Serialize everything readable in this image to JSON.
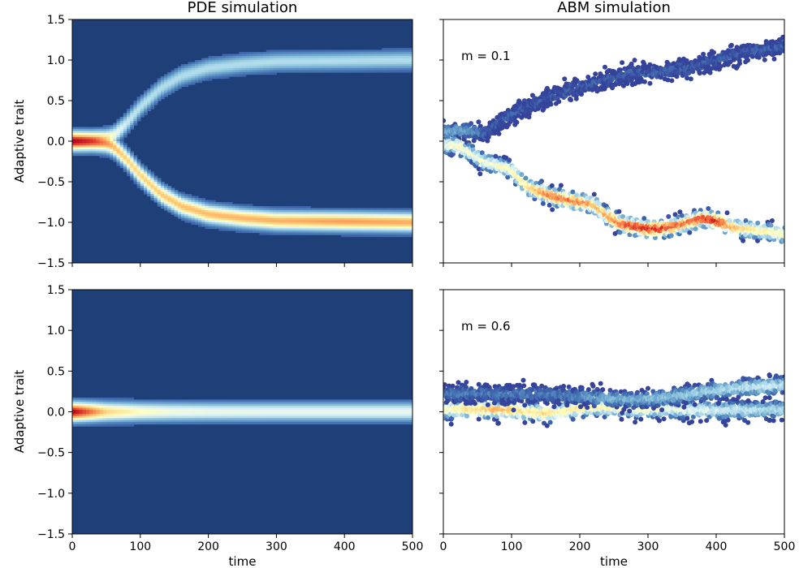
{
  "figure": {
    "colormap": [
      "#313695",
      "#4575b4",
      "#74add1",
      "#abd9e9",
      "#e0f3f8",
      "#ffffbf",
      "#fee090",
      "#fdae61",
      "#f46d43",
      "#d73027",
      "#a50026"
    ],
    "background_color": "#1f3f78"
  },
  "chart_data": [
    {
      "id": "pde-top",
      "type": "heatmap",
      "title": "PDE simulation",
      "xlabel": "",
      "ylabel": "Adaptive trait",
      "xlim": [
        0,
        500
      ],
      "ylim": [
        -1.5,
        1.5
      ],
      "xticks": [
        0,
        100,
        200,
        300,
        400,
        500
      ],
      "xtick_labels_shown": false,
      "yticks": [
        -1.5,
        -1.0,
        -0.5,
        0.0,
        0.5,
        1.0,
        1.5
      ],
      "ytick_labels": [
        "−1.5",
        "−1.0",
        "−0.5",
        "0.0",
        "0.5",
        "1.0",
        "1.5"
      ],
      "branches": [
        {
          "name": "",
          "t": [
            0,
            30,
            50,
            60,
            80,
            100,
            130,
            160,
            200,
            250,
            300,
            400,
            500
          ],
          "trait": [
            0.0,
            0.0,
            -0.02,
            -0.06,
            -0.22,
            -0.42,
            -0.65,
            -0.8,
            -0.9,
            -0.95,
            -0.98,
            -0.99,
            -1.0
          ],
          "intensity": [
            1.0,
            0.9,
            0.75,
            0.68,
            0.62,
            0.62,
            0.64,
            0.66,
            0.67,
            0.68,
            0.69,
            0.72,
            0.7
          ]
        },
        {
          "name": "",
          "t": [
            0,
            30,
            50,
            60,
            80,
            100,
            130,
            160,
            200,
            250,
            300,
            400,
            500
          ],
          "trait": [
            0.0,
            0.0,
            0.02,
            0.06,
            0.22,
            0.42,
            0.65,
            0.8,
            0.9,
            0.95,
            0.98,
            0.99,
            1.0
          ],
          "intensity": [
            1.0,
            0.9,
            0.65,
            0.45,
            0.35,
            0.32,
            0.3,
            0.3,
            0.3,
            0.3,
            0.3,
            0.3,
            0.3
          ]
        }
      ]
    },
    {
      "id": "abm-top",
      "type": "scatter",
      "title": "ABM simulation",
      "annotation": "m = 0.1",
      "xlabel": "",
      "ylabel": "",
      "xlim": [
        0,
        500
      ],
      "ylim": [
        -1.5,
        1.5
      ],
      "xticks": [
        0,
        100,
        200,
        300,
        400,
        500
      ],
      "xtick_labels_shown": false,
      "yticks": [
        -1.5,
        -1.0,
        -0.5,
        0.0,
        0.5,
        1.0,
        1.5
      ],
      "ytick_labels_shown": false,
      "clusters": [
        {
          "t": [
            0,
            20,
            40,
            60,
            80,
            100,
            120,
            140,
            160,
            180,
            200,
            220,
            240,
            260,
            280,
            300,
            320,
            340,
            360,
            380,
            400,
            420,
            440,
            460,
            480,
            500
          ],
          "trait": [
            0.1,
            0.13,
            0.12,
            0.1,
            0.22,
            0.31,
            0.42,
            0.48,
            0.55,
            0.62,
            0.66,
            0.72,
            0.75,
            0.8,
            0.84,
            0.84,
            0.86,
            0.88,
            0.9,
            0.95,
            1.0,
            1.05,
            1.1,
            1.12,
            1.15,
            1.2
          ],
          "intensity": [
            0.25,
            0.22,
            0.2,
            0.12,
            0.1,
            0.1,
            0.1,
            0.1,
            0.1,
            0.1,
            0.1,
            0.1,
            0.1,
            0.1,
            0.1,
            0.1,
            0.1,
            0.1,
            0.1,
            0.1,
            0.1,
            0.1,
            0.1,
            0.1,
            0.1,
            0.1
          ]
        },
        {
          "t": [
            0,
            20,
            40,
            60,
            80,
            100,
            120,
            140,
            160,
            180,
            200,
            220,
            240,
            260,
            280,
            300,
            320,
            340,
            360,
            380,
            400,
            420,
            440,
            460,
            480,
            500
          ],
          "trait": [
            -0.05,
            -0.05,
            -0.15,
            -0.25,
            -0.3,
            -0.35,
            -0.55,
            -0.62,
            -0.68,
            -0.72,
            -0.75,
            -0.78,
            -0.92,
            -1.02,
            -1.05,
            -1.08,
            -1.08,
            -1.05,
            -1.0,
            -0.95,
            -0.98,
            -1.05,
            -1.08,
            -1.1,
            -1.12,
            -1.15
          ],
          "intensity": [
            0.5,
            0.55,
            0.5,
            0.52,
            0.55,
            0.55,
            0.6,
            0.75,
            0.8,
            0.85,
            0.82,
            0.7,
            0.75,
            0.85,
            0.92,
            0.95,
            0.92,
            0.85,
            0.82,
            0.9,
            0.95,
            0.75,
            0.65,
            0.6,
            0.58,
            0.55
          ]
        }
      ]
    },
    {
      "id": "pde-bottom",
      "type": "heatmap",
      "title": "",
      "xlabel": "time",
      "ylabel": "Adaptive trait",
      "xlim": [
        0,
        500
      ],
      "ylim": [
        -1.5,
        1.5
      ],
      "xticks": [
        0,
        100,
        200,
        300,
        400,
        500
      ],
      "xtick_labels": [
        "0",
        "100",
        "200",
        "300",
        "400",
        "500"
      ],
      "yticks": [
        -1.5,
        -1.0,
        -0.5,
        0.0,
        0.5,
        1.0,
        1.5
      ],
      "ytick_labels": [
        "−1.5",
        "−1.0",
        "−0.5",
        "0.0",
        "0.5",
        "1.0",
        "1.5"
      ],
      "branches": [
        {
          "name": "",
          "t": [
            0,
            20,
            50,
            100,
            150,
            200,
            300,
            400,
            500
          ],
          "trait": [
            0.0,
            0.0,
            0.0,
            0.0,
            0.0,
            0.0,
            0.0,
            0.0,
            0.0
          ],
          "intensity": [
            1.0,
            0.85,
            0.62,
            0.5,
            0.45,
            0.43,
            0.42,
            0.42,
            0.42
          ]
        }
      ]
    },
    {
      "id": "abm-bottom",
      "type": "scatter",
      "title": "",
      "annotation": "m = 0.6",
      "xlabel": "time",
      "ylabel": "",
      "xlim": [
        0,
        500
      ],
      "ylim": [
        -1.5,
        1.5
      ],
      "xticks": [
        0,
        100,
        200,
        300,
        400,
        500
      ],
      "xtick_labels": [
        "0",
        "100",
        "200",
        "300",
        "400",
        "500"
      ],
      "yticks": [
        -1.5,
        -1.0,
        -0.5,
        0.0,
        0.5,
        1.0,
        1.5
      ],
      "ytick_labels_shown": false,
      "clusters": [
        {
          "t": [
            0,
            25,
            50,
            75,
            100,
            125,
            150,
            175,
            200,
            225,
            250,
            275,
            300,
            325,
            350,
            375,
            400,
            425,
            450,
            475,
            500
          ],
          "trait": [
            0.02,
            0.03,
            0.03,
            0.03,
            0.02,
            0.0,
            -0.02,
            0.0,
            0.05,
            0.06,
            0.05,
            0.04,
            0.03,
            0.04,
            0.03,
            0.02,
            0.02,
            0.02,
            0.02,
            0.03,
            0.03
          ],
          "intensity": [
            0.55,
            0.6,
            0.65,
            0.72,
            0.7,
            0.6,
            0.65,
            0.55,
            0.62,
            0.58,
            0.55,
            0.52,
            0.55,
            0.5,
            0.48,
            0.45,
            0.42,
            0.4,
            0.38,
            0.35,
            0.35
          ]
        },
        {
          "t": [
            140,
            175,
            210,
            245,
            280,
            315,
            350,
            385,
            420,
            450,
            480,
            500
          ],
          "trait": [
            0.22,
            0.2,
            0.18,
            0.16,
            0.15,
            0.16,
            0.2,
            0.25,
            0.28,
            0.3,
            0.32,
            0.33
          ],
          "intensity": [
            0.15,
            0.15,
            0.2,
            0.25,
            0.25,
            0.28,
            0.3,
            0.32,
            0.35,
            0.38,
            0.4,
            0.38
          ]
        }
      ]
    }
  ]
}
